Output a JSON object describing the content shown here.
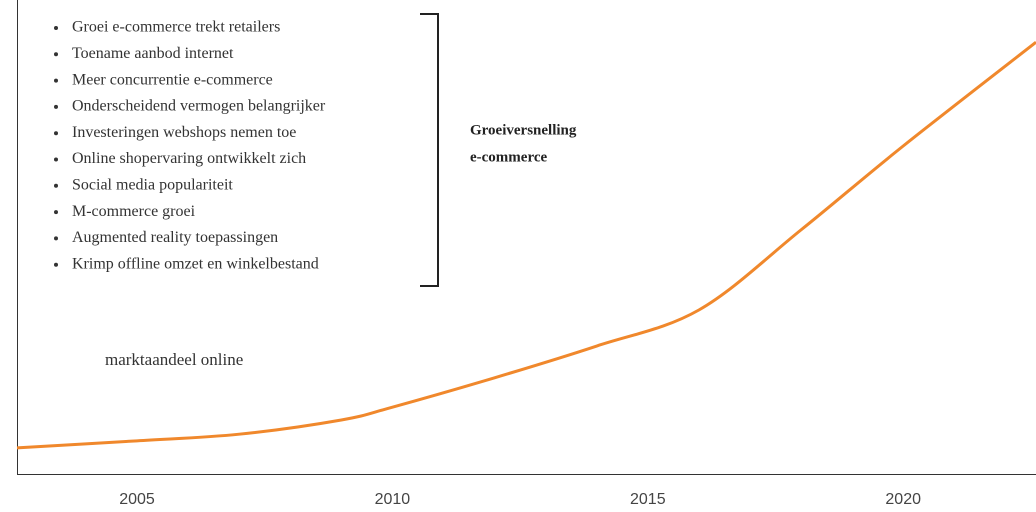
{
  "chart_data": {
    "type": "line",
    "x": [
      2002.65,
      2005,
      2007,
      2009,
      2010,
      2012,
      2014,
      2016,
      2018,
      2020,
      2022.6
    ],
    "series": [
      {
        "name": "marktaandeel online",
        "color": "#f0882c",
        "values": [
          5.5,
          7,
          8.4,
          11.4,
          14.1,
          20.3,
          27,
          34.6,
          51.5,
          69.2,
          91.1
        ]
      }
    ],
    "xlim": [
      2002.65,
      2022.6
    ],
    "xticks": [
      2005,
      2010,
      2015,
      2020
    ],
    "ylim": [
      0,
      100
    ],
    "bullets": [
      "Groei e-commerce trekt retailers",
      "Toename aanbod internet",
      "Meer concurrentie e-commerce",
      "Onderscheidend vermogen belangrijker",
      "Investeringen webshops nemen toe",
      "Online shopervaring ontwikkelt zich",
      "Social media populariteit",
      "M-commerce groei",
      "Augmented reality toepassingen",
      "Krimp offline omzet en winkelbestand"
    ],
    "annotation": [
      "Groeiversnelling",
      "e-commerce"
    ]
  }
}
